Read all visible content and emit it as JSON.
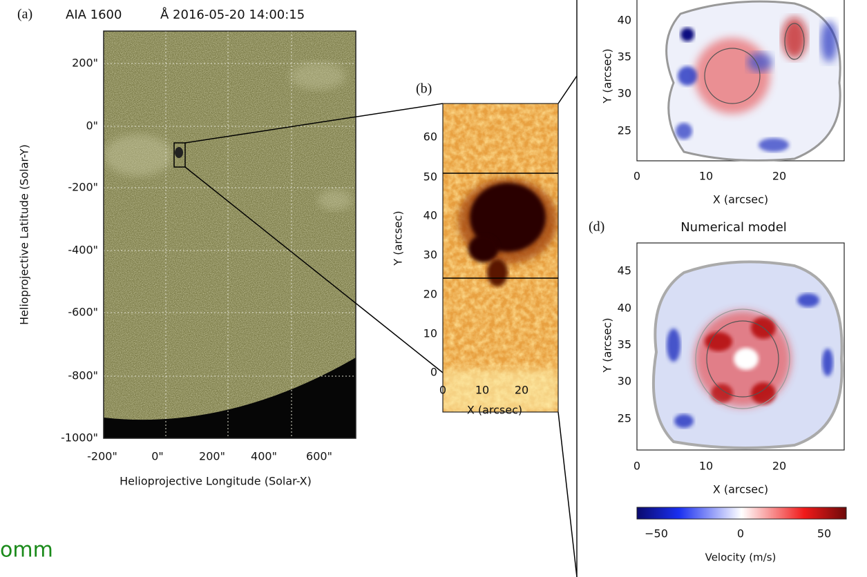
{
  "panel_a": {
    "label": "(a)",
    "title_instrument": "AIA 1600",
    "title_date": "Å 2016-05-20 14:00:15",
    "yticks": [
      "200\"",
      "0\"",
      "-200\"",
      "-400\"",
      "-600\"",
      "-800\"",
      "-1000\""
    ],
    "xticks": [
      "-200\"",
      "0\"",
      "200\"",
      "400\"",
      "600\""
    ],
    "xlabel": "Helioprojective Longitude (Solar-X)",
    "ylabel": "Helioprojective Latitude (Solar-Y)"
  },
  "panel_b": {
    "label": "(b)",
    "yticks": [
      "60",
      "50",
      "40",
      "30",
      "20",
      "10",
      "0"
    ],
    "xticks": [
      "0",
      "10",
      "20"
    ],
    "xlabel": "X (arcsec)",
    "ylabel": "Y (arcsec)"
  },
  "panel_c": {
    "yticks": [
      "40",
      "35",
      "30",
      "25"
    ],
    "xticks": [
      "0",
      "10",
      "20"
    ],
    "xlabel": "X (arcsec)",
    "ylabel": "Y (arcsec)"
  },
  "panel_d": {
    "label": "(d)",
    "title": "Numerical model",
    "yticks": [
      "45",
      "40",
      "35",
      "30",
      "25"
    ],
    "xticks": [
      "0",
      "10",
      "20"
    ],
    "xlabel": "X (arcsec)",
    "ylabel": "Y (arcsec)"
  },
  "colorbar": {
    "ticks": [
      "−50",
      "0",
      "50"
    ],
    "label": "Velocity (m/s)"
  },
  "footer_text": "omm"
}
